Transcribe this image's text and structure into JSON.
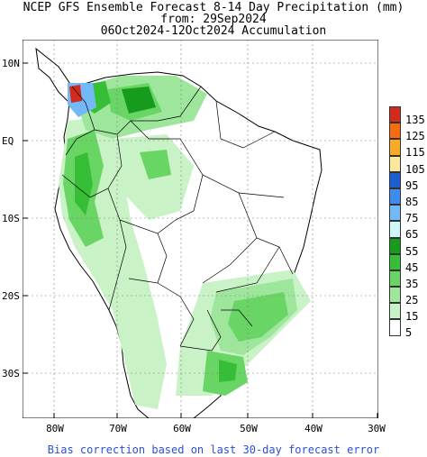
{
  "title": {
    "line1": "NCEP GFS Ensemble Forecast 8-14 Day Precipitation (mm)",
    "line2": "from: 29Sep2024",
    "line3": "06Oct2024-12Oct2024 Accumulation"
  },
  "axes": {
    "latitude_labels": [
      "10N",
      "EQ",
      "10S",
      "20S",
      "30S"
    ],
    "longitude_labels": [
      "80W",
      "70W",
      "60W",
      "50W",
      "40W",
      "30W"
    ]
  },
  "legend": {
    "items": [
      {
        "label": "135",
        "color": "#d22a1b"
      },
      {
        "label": "125",
        "color": "#f76c10"
      },
      {
        "label": "115",
        "color": "#fbaa28"
      },
      {
        "label": "105",
        "color": "#fde79c"
      },
      {
        "label": "95",
        "color": "#1c5dd0"
      },
      {
        "label": "85",
        "color": "#3f8cee"
      },
      {
        "label": "75",
        "color": "#74b9f7"
      },
      {
        "label": "65",
        "color": "#cff5f6"
      },
      {
        "label": "55",
        "color": "#179b1c"
      },
      {
        "label": "45",
        "color": "#36be36"
      },
      {
        "label": "35",
        "color": "#68d564"
      },
      {
        "label": "25",
        "color": "#9ee69c"
      },
      {
        "label": "15",
        "color": "#c9f2c6"
      },
      {
        "label": "5",
        "color": "#ffffff"
      }
    ]
  },
  "footer": "Bias correction based on last 30-day forecast error"
}
